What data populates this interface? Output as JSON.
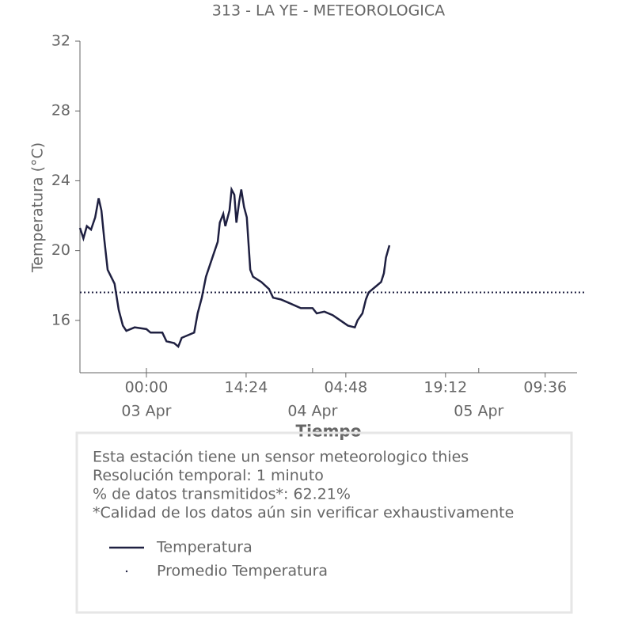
{
  "chart_data": {
    "type": "line",
    "title": "313 - LA YE - METEOROLOGICA",
    "xlabel": "Tiempo",
    "ylabel": "Temperatura (°C)",
    "xlim": [
      -9.6,
      62.2
    ],
    "ylim": [
      13,
      32
    ],
    "yticks": [
      16,
      20,
      24,
      28,
      32
    ],
    "xticks": [
      {
        "value": 0,
        "label": "00:00"
      },
      {
        "value": 14.4,
        "label": "14:24"
      },
      {
        "value": 28.8,
        "label": "04:48"
      },
      {
        "value": 43.2,
        "label": "19:12"
      },
      {
        "value": 57.6,
        "label": "09:36"
      }
    ],
    "x_date_ticks": [
      {
        "value": 0,
        "label": "03 Apr"
      },
      {
        "value": 24,
        "label": "04 Apr"
      },
      {
        "value": 48,
        "label": "05 Apr"
      }
    ],
    "x": [
      -9.6,
      -9.1,
      -8.6,
      -8.0,
      -7.4,
      -6.9,
      -6.5,
      -6.1,
      -5.6,
      -4.6,
      -4.0,
      -3.4,
      -2.9,
      -1.7,
      0,
      0.6,
      2.3,
      2.9,
      4.0,
      4.6,
      5.1,
      6.9,
      7.4,
      8.0,
      8.6,
      9.7,
      10.3,
      10.6,
      11.1,
      11.4,
      12.0,
      12.3,
      12.7,
      13.0,
      13.4,
      13.7,
      14.1,
      14.5,
      15.0,
      15.4,
      16.6,
      17.7,
      18.3,
      19.4,
      20.6,
      22.3,
      24.0,
      24.6,
      25.7,
      26.9,
      28.0,
      29.1,
      30.1,
      30.5,
      31.2,
      31.7,
      32.1,
      33.3,
      33.9,
      34.3,
      34.6,
      35.1
    ],
    "series": [
      {
        "name": "Temperatura",
        "color": "#1f2041",
        "values": [
          21.3,
          20.7,
          21.4,
          21.2,
          21.9,
          23.0,
          22.3,
          20.7,
          18.9,
          18.1,
          16.6,
          15.7,
          15.4,
          15.6,
          15.5,
          15.3,
          15.3,
          14.8,
          14.7,
          14.5,
          15.0,
          15.3,
          16.4,
          17.3,
          18.5,
          19.8,
          20.5,
          21.6,
          22.1,
          21.4,
          22.3,
          23.5,
          23.2,
          21.6,
          22.8,
          23.5,
          22.5,
          21.9,
          18.9,
          18.5,
          18.2,
          17.8,
          17.3,
          17.2,
          17.0,
          16.7,
          16.7,
          16.4,
          16.5,
          16.3,
          16.0,
          15.7,
          15.6,
          16.0,
          16.4,
          17.2,
          17.6,
          18.0,
          18.2,
          18.7,
          19.6,
          20.3
        ]
      }
    ],
    "reference_lines": [
      {
        "name": "Promedio Temperatura",
        "value": 17.6,
        "color": "#1f2041"
      }
    ],
    "notes": [
      "Esta estación tiene un sensor meteorologico thies",
      "Resolución temporal: 1 minuto",
      "% de datos transmitidos*: 62.21%",
      "*Calidad de los datos aún sin verificar exhaustivamente"
    ]
  }
}
